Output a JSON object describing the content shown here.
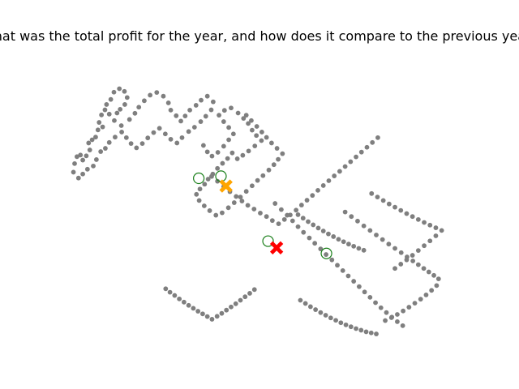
{
  "chart_data": {
    "type": "scatter",
    "title": "What was the total profit for the year, and how does it compare to the previous year?",
    "xlabel": "",
    "ylabel": "",
    "axes_visible": false,
    "grid": false,
    "xlim": [
      0,
      1
    ],
    "ylim": [
      0,
      1
    ],
    "colors": {
      "points": "#7f7f7f",
      "candidates": "#1a7f1a",
      "query_marker": "#ffa500",
      "answer_marker": "#ff0000"
    },
    "series": [
      {
        "role": "points",
        "marker": "dot",
        "color": "#7f7f7f",
        "points": [
          [
            0.022,
            0.629
          ],
          [
            0.025,
            0.661
          ],
          [
            0.031,
            0.687
          ],
          [
            0.04,
            0.693
          ],
          [
            0.046,
            0.674
          ],
          [
            0.055,
            0.69
          ],
          [
            0.064,
            0.712
          ],
          [
            0.061,
            0.738
          ],
          [
            0.07,
            0.75
          ],
          [
            0.079,
            0.76
          ],
          [
            0.085,
            0.787
          ],
          [
            0.097,
            0.798
          ],
          [
            0.088,
            0.815
          ],
          [
            0.094,
            0.843
          ],
          [
            0.103,
            0.862
          ],
          [
            0.107,
            0.882
          ],
          [
            0.118,
            0.901
          ],
          [
            0.126,
            0.928
          ],
          [
            0.14,
            0.941
          ],
          [
            0.153,
            0.931
          ],
          [
            0.16,
            0.908
          ],
          [
            0.154,
            0.882
          ],
          [
            0.142,
            0.864
          ],
          [
            0.134,
            0.85
          ],
          [
            0.114,
            0.846
          ],
          [
            0.127,
            0.822
          ],
          [
            0.145,
            0.803
          ],
          [
            0.166,
            0.826
          ],
          [
            0.18,
            0.849
          ],
          [
            0.19,
            0.872
          ],
          [
            0.204,
            0.896
          ],
          [
            0.219,
            0.917
          ],
          [
            0.236,
            0.927
          ],
          [
            0.253,
            0.913
          ],
          [
            0.266,
            0.888
          ],
          [
            0.272,
            0.861
          ],
          [
            0.286,
            0.84
          ],
          [
            0.298,
            0.82
          ],
          [
            0.309,
            0.839
          ],
          [
            0.321,
            0.861
          ],
          [
            0.337,
            0.879
          ],
          [
            0.35,
            0.898
          ],
          [
            0.366,
            0.913
          ],
          [
            0.381,
            0.892
          ],
          [
            0.376,
            0.862
          ],
          [
            0.362,
            0.838
          ],
          [
            0.349,
            0.818
          ],
          [
            0.333,
            0.797
          ],
          [
            0.318,
            0.781
          ],
          [
            0.301,
            0.758
          ],
          [
            0.288,
            0.738
          ],
          [
            0.272,
            0.752
          ],
          [
            0.258,
            0.772
          ],
          [
            0.243,
            0.793
          ],
          [
            0.228,
            0.777
          ],
          [
            0.213,
            0.757
          ],
          [
            0.199,
            0.736
          ],
          [
            0.184,
            0.72
          ],
          [
            0.17,
            0.736
          ],
          [
            0.158,
            0.758
          ],
          [
            0.146,
            0.779
          ],
          [
            0.129,
            0.76
          ],
          [
            0.114,
            0.74
          ],
          [
            0.104,
            0.718
          ],
          [
            0.092,
            0.706
          ],
          [
            0.081,
            0.676
          ],
          [
            0.073,
            0.652
          ],
          [
            0.058,
            0.64
          ],
          [
            0.046,
            0.622
          ],
          [
            0.035,
            0.607
          ],
          [
            0.356,
            0.729
          ],
          [
            0.366,
            0.705
          ],
          [
            0.378,
            0.689
          ],
          [
            0.393,
            0.703
          ],
          [
            0.408,
            0.726
          ],
          [
            0.421,
            0.75
          ],
          [
            0.433,
            0.772
          ],
          [
            0.421,
            0.796
          ],
          [
            0.408,
            0.818
          ],
          [
            0.396,
            0.842
          ],
          [
            0.41,
            0.86
          ],
          [
            0.427,
            0.869
          ],
          [
            0.445,
            0.85
          ],
          [
            0.459,
            0.83
          ],
          [
            0.471,
            0.811
          ],
          [
            0.481,
            0.786
          ],
          [
            0.492,
            0.766
          ],
          [
            0.505,
            0.747
          ],
          [
            0.488,
            0.727
          ],
          [
            0.472,
            0.708
          ],
          [
            0.457,
            0.692
          ],
          [
            0.443,
            0.679
          ],
          [
            0.43,
            0.701
          ],
          [
            0.418,
            0.68
          ],
          [
            0.405,
            0.662
          ],
          [
            0.392,
            0.643
          ],
          [
            0.38,
            0.622
          ],
          [
            0.368,
            0.603
          ],
          [
            0.359,
            0.584
          ],
          [
            0.347,
            0.566
          ],
          [
            0.338,
            0.546
          ],
          [
            0.345,
            0.523
          ],
          [
            0.358,
            0.503
          ],
          [
            0.372,
            0.485
          ],
          [
            0.388,
            0.468
          ],
          [
            0.404,
            0.477
          ],
          [
            0.42,
            0.496
          ],
          [
            0.435,
            0.515
          ],
          [
            0.451,
            0.536
          ],
          [
            0.466,
            0.557
          ],
          [
            0.481,
            0.578
          ],
          [
            0.495,
            0.598
          ],
          [
            0.509,
            0.616
          ],
          [
            0.524,
            0.637
          ],
          [
            0.537,
            0.657
          ],
          [
            0.548,
            0.677
          ],
          [
            0.559,
            0.698
          ],
          [
            0.545,
            0.718
          ],
          [
            0.531,
            0.738
          ],
          [
            0.518,
            0.759
          ],
          [
            0.506,
            0.779
          ],
          [
            0.493,
            0.8
          ],
          [
            0.479,
            0.822
          ],
          [
            0.466,
            0.842
          ],
          [
            0.377,
            0.613
          ],
          [
            0.392,
            0.595
          ],
          [
            0.408,
            0.575
          ],
          [
            0.424,
            0.556
          ],
          [
            0.44,
            0.538
          ],
          [
            0.455,
            0.521
          ],
          [
            0.47,
            0.505
          ],
          [
            0.486,
            0.491
          ],
          [
            0.502,
            0.476
          ],
          [
            0.518,
            0.463
          ],
          [
            0.533,
            0.448
          ],
          [
            0.549,
            0.436
          ],
          [
            0.564,
            0.452
          ],
          [
            0.579,
            0.469
          ],
          [
            0.594,
            0.487
          ],
          [
            0.608,
            0.506
          ],
          [
            0.622,
            0.524
          ],
          [
            0.636,
            0.542
          ],
          [
            0.65,
            0.561
          ],
          [
            0.664,
            0.579
          ],
          [
            0.678,
            0.597
          ],
          [
            0.692,
            0.615
          ],
          [
            0.706,
            0.632
          ],
          [
            0.72,
            0.65
          ],
          [
            0.734,
            0.668
          ],
          [
            0.748,
            0.686
          ],
          [
            0.762,
            0.704
          ],
          [
            0.776,
            0.722
          ],
          [
            0.79,
            0.74
          ],
          [
            0.804,
            0.758
          ],
          [
            0.54,
            0.512
          ],
          [
            0.556,
            0.489
          ],
          [
            0.571,
            0.468
          ],
          [
            0.585,
            0.447
          ],
          [
            0.599,
            0.425
          ],
          [
            0.613,
            0.404
          ],
          [
            0.628,
            0.383
          ],
          [
            0.642,
            0.363
          ],
          [
            0.657,
            0.342
          ],
          [
            0.671,
            0.321
          ],
          [
            0.686,
            0.301
          ],
          [
            0.7,
            0.281
          ],
          [
            0.714,
            0.261
          ],
          [
            0.728,
            0.241
          ],
          [
            0.742,
            0.221
          ],
          [
            0.756,
            0.201
          ],
          [
            0.77,
            0.181
          ],
          [
            0.784,
            0.161
          ],
          [
            0.798,
            0.141
          ],
          [
            0.812,
            0.122
          ],
          [
            0.826,
            0.104
          ],
          [
            0.84,
            0.087
          ],
          [
            0.854,
            0.07
          ],
          [
            0.868,
            0.055
          ],
          [
            0.72,
            0.48
          ],
          [
            0.736,
            0.463
          ],
          [
            0.752,
            0.446
          ],
          [
            0.768,
            0.428
          ],
          [
            0.784,
            0.411
          ],
          [
            0.8,
            0.394
          ],
          [
            0.816,
            0.377
          ],
          [
            0.832,
            0.36
          ],
          [
            0.848,
            0.344
          ],
          [
            0.864,
            0.328
          ],
          [
            0.879,
            0.312
          ],
          [
            0.894,
            0.297
          ],
          [
            0.908,
            0.283
          ],
          [
            0.922,
            0.269
          ],
          [
            0.935,
            0.256
          ],
          [
            0.948,
            0.243
          ],
          [
            0.96,
            0.23
          ],
          [
            0.955,
            0.205
          ],
          [
            0.942,
            0.187
          ],
          [
            0.928,
            0.17
          ],
          [
            0.914,
            0.154
          ],
          [
            0.899,
            0.139
          ],
          [
            0.884,
            0.124
          ],
          [
            0.869,
            0.11
          ],
          [
            0.854,
            0.097
          ],
          [
            0.839,
            0.085
          ],
          [
            0.823,
            0.074
          ],
          [
            0.788,
            0.549
          ],
          [
            0.803,
            0.536
          ],
          [
            0.818,
            0.523
          ],
          [
            0.833,
            0.51
          ],
          [
            0.848,
            0.498
          ],
          [
            0.863,
            0.486
          ],
          [
            0.878,
            0.474
          ],
          [
            0.893,
            0.463
          ],
          [
            0.908,
            0.452
          ],
          [
            0.923,
            0.441
          ],
          [
            0.938,
            0.431
          ],
          [
            0.953,
            0.421
          ],
          [
            0.968,
            0.411
          ],
          [
            0.953,
            0.391
          ],
          [
            0.938,
            0.372
          ],
          [
            0.923,
            0.354
          ],
          [
            0.908,
            0.336
          ],
          [
            0.893,
            0.318
          ],
          [
            0.878,
            0.301
          ],
          [
            0.863,
            0.285
          ],
          [
            0.848,
            0.269
          ],
          [
            0.259,
            0.193
          ],
          [
            0.27,
            0.18
          ],
          [
            0.282,
            0.168
          ],
          [
            0.294,
            0.155
          ],
          [
            0.306,
            0.143
          ],
          [
            0.318,
            0.131
          ],
          [
            0.33,
            0.12
          ],
          [
            0.342,
            0.109
          ],
          [
            0.354,
            0.099
          ],
          [
            0.366,
            0.089
          ],
          [
            0.378,
            0.079
          ],
          [
            0.391,
            0.09
          ],
          [
            0.403,
            0.101
          ],
          [
            0.415,
            0.113
          ],
          [
            0.427,
            0.125
          ],
          [
            0.439,
            0.137
          ],
          [
            0.451,
            0.15
          ],
          [
            0.463,
            0.163
          ],
          [
            0.475,
            0.176
          ],
          [
            0.487,
            0.19
          ],
          [
            0.605,
            0.15
          ],
          [
            0.618,
            0.138
          ],
          [
            0.631,
            0.126
          ],
          [
            0.644,
            0.115
          ],
          [
            0.657,
            0.104
          ],
          [
            0.67,
            0.094
          ],
          [
            0.683,
            0.084
          ],
          [
            0.696,
            0.075
          ],
          [
            0.709,
            0.066
          ],
          [
            0.722,
            0.058
          ],
          [
            0.735,
            0.051
          ],
          [
            0.748,
            0.044
          ],
          [
            0.761,
            0.038
          ],
          [
            0.774,
            0.032
          ],
          [
            0.787,
            0.028
          ],
          [
            0.8,
            0.024
          ],
          [
            0.599,
            0.47
          ],
          [
            0.612,
            0.457
          ],
          [
            0.625,
            0.444
          ],
          [
            0.638,
            0.432
          ],
          [
            0.651,
            0.42
          ],
          [
            0.664,
            0.409
          ],
          [
            0.677,
            0.398
          ],
          [
            0.69,
            0.388
          ],
          [
            0.703,
            0.378
          ],
          [
            0.716,
            0.369
          ],
          [
            0.729,
            0.36
          ],
          [
            0.742,
            0.352
          ],
          [
            0.755,
            0.344
          ],
          [
            0.768,
            0.337
          ]
        ]
      },
      {
        "role": "candidates",
        "marker": "open-circle",
        "color": "#1a7f1a",
        "points": [
          [
            0.344,
            0.606
          ],
          [
            0.401,
            0.614
          ],
          [
            0.522,
            0.371
          ],
          [
            0.672,
            0.325
          ]
        ]
      },
      {
        "role": "query",
        "marker": "x",
        "color": "#ffa500",
        "points": [
          [
            0.414,
            0.577
          ]
        ]
      },
      {
        "role": "answer",
        "marker": "x",
        "color": "#ff0000",
        "points": [
          [
            0.544,
            0.346
          ]
        ]
      }
    ]
  }
}
